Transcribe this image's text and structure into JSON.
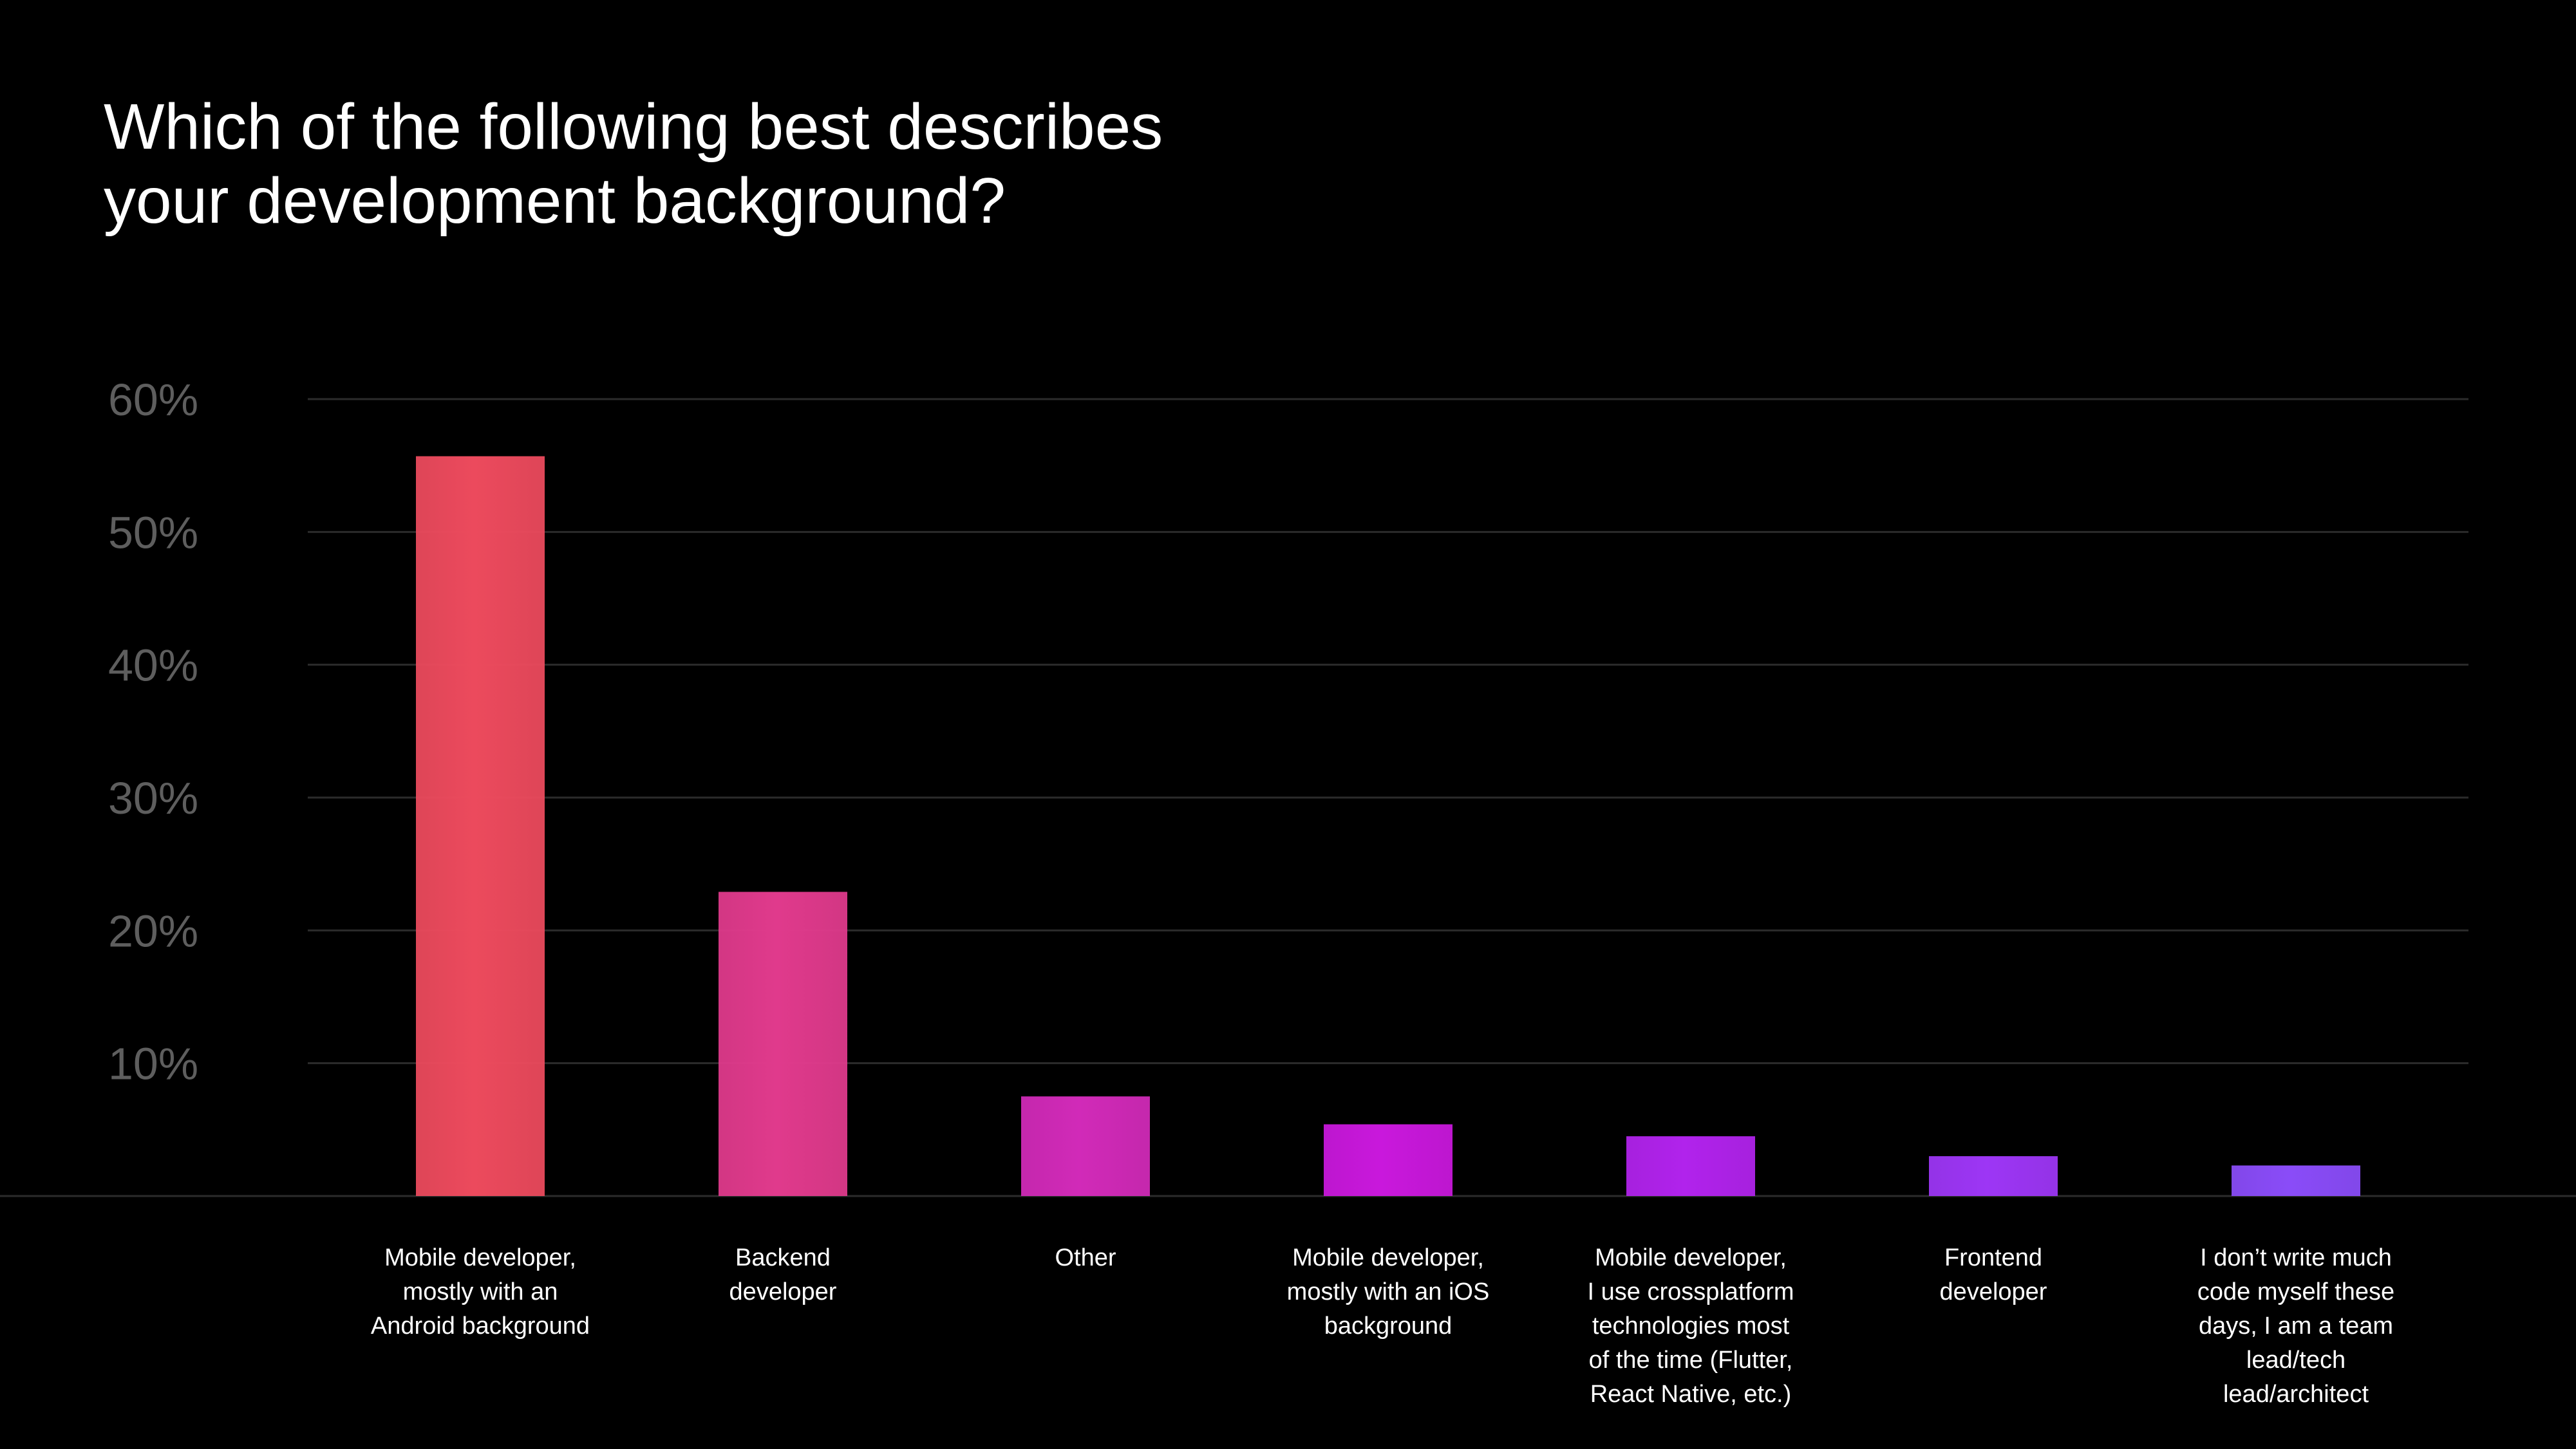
{
  "chart_data": {
    "type": "bar",
    "title": "Which of the following best describes\nyour development background?",
    "xlabel": "",
    "ylabel": "",
    "ylim": [
      0,
      60
    ],
    "yticks": [
      10,
      20,
      30,
      40,
      50,
      60
    ],
    "ytick_labels": [
      "10%",
      "20%",
      "30%",
      "40%",
      "50%",
      "60%"
    ],
    "grid": true,
    "categories": [
      "Mobile developer,\nmostly with an\nAndroid background",
      "Backend\ndeveloper",
      "Other",
      "Mobile developer,\nmostly with an iOS\nbackground",
      "Mobile developer,\nI use crossplatform\ntechnologies most\nof the time (Flutter,\nReact Native, etc.)",
      "Frontend\ndeveloper",
      "I don’t write much\ncode myself these\ndays, I am a team\nlead/tech\nlead/architect"
    ],
    "values": [
      55.7,
      22.9,
      7.5,
      5.4,
      4.5,
      3.0,
      2.3
    ],
    "colors": [
      "#ec4a5d",
      "#e03a8c",
      "#d12ab8",
      "#c918dc",
      "#b123ec",
      "#9d36f5",
      "#8a4cf8"
    ]
  }
}
